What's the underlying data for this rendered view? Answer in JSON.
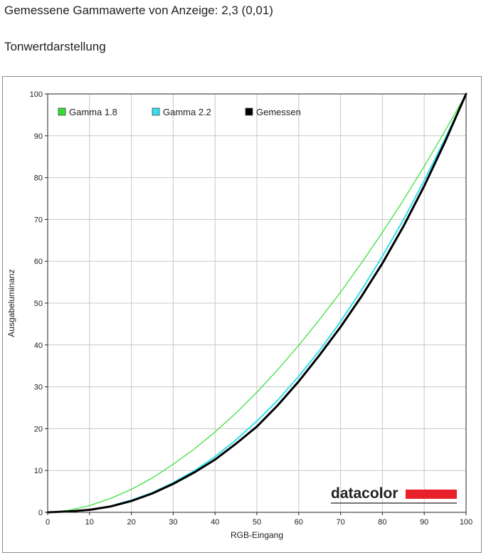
{
  "header": {
    "measured_gamma": "Gemessene Gammawerte von Anzeige: 2,3 (0,01)",
    "section_title": "Tonwertdarstellung"
  },
  "brand": {
    "name": "datacolor",
    "accent_color": "#e8202a"
  },
  "chart_data": {
    "type": "line",
    "title": "",
    "xlabel": "RGB-Eingang",
    "ylabel": "Ausgabeluminanz",
    "xlim": [
      0,
      100
    ],
    "ylim": [
      0,
      100
    ],
    "x_ticks": [
      0,
      10,
      20,
      30,
      40,
      50,
      60,
      70,
      80,
      90,
      100
    ],
    "y_ticks": [
      0,
      10,
      20,
      30,
      40,
      50,
      60,
      70,
      80,
      90,
      100
    ],
    "grid": true,
    "legend_position": "top-left",
    "x": [
      0,
      5,
      10,
      15,
      20,
      25,
      30,
      35,
      40,
      45,
      50,
      55,
      60,
      65,
      70,
      75,
      80,
      85,
      90,
      95,
      100
    ],
    "series": [
      {
        "name": "Gamma 1.8",
        "color": "#33dd33",
        "width": 1.2,
        "values": [
          0,
          0.5,
          1.6,
          3.3,
          5.5,
          8.2,
          11.5,
          15.1,
          19.2,
          23.7,
          28.7,
          34.1,
          39.9,
          46.1,
          52.6,
          59.6,
          66.9,
          74.6,
          82.7,
          91.2,
          100
        ]
      },
      {
        "name": "Gamma 2.2",
        "color": "#33e0f0",
        "width": 2,
        "values": [
          0,
          0.1,
          0.6,
          1.5,
          2.9,
          4.7,
          7.1,
          9.9,
          13.3,
          17.3,
          21.8,
          26.8,
          32.5,
          38.7,
          45.6,
          53.1,
          61.2,
          69.9,
          79.3,
          89.3,
          100
        ]
      },
      {
        "name": "Gemessen",
        "color": "#000000",
        "width": 3,
        "values": [
          0,
          0.2,
          0.6,
          1.4,
          2.7,
          4.5,
          6.8,
          9.5,
          12.6,
          16.4,
          20.5,
          25.6,
          31.3,
          37.6,
          44.3,
          51.6,
          59.5,
          68.3,
          78.0,
          88.6,
          100
        ]
      }
    ]
  }
}
